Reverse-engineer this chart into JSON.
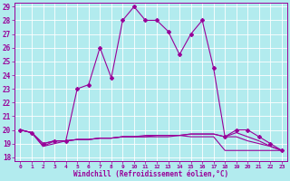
{
  "xlabel": "Windchill (Refroidissement éolien,°C)",
  "background_color": "#b2ebee",
  "grid_color": "#ffffff",
  "line_color": "#990099",
  "xlim": [
    -0.5,
    23.5
  ],
  "ylim": [
    17.7,
    29.3
  ],
  "yticks": [
    18,
    19,
    20,
    21,
    22,
    23,
    24,
    25,
    26,
    27,
    28,
    29
  ],
  "xticks": [
    0,
    1,
    2,
    3,
    4,
    5,
    6,
    7,
    8,
    9,
    10,
    11,
    12,
    13,
    14,
    15,
    16,
    17,
    18,
    19,
    20,
    21,
    22,
    23
  ],
  "series": [
    {
      "x": [
        0,
        1,
        2,
        3,
        4,
        5,
        6,
        7,
        8,
        9,
        10,
        11,
        12,
        13,
        14,
        15,
        16,
        17,
        18,
        19,
        20,
        21,
        22,
        23
      ],
      "y": [
        20.0,
        19.8,
        19.0,
        19.2,
        19.2,
        23.0,
        23.3,
        26.0,
        23.8,
        28.0,
        29.0,
        28.0,
        28.0,
        27.2,
        25.5,
        27.0,
        28.0,
        24.5,
        19.5,
        20.0,
        20.0,
        19.5,
        19.0,
        18.5
      ],
      "marker": true
    },
    {
      "x": [
        0,
        1,
        2,
        3,
        4,
        5,
        6,
        7,
        8,
        9,
        10,
        11,
        12,
        13,
        14,
        15,
        16,
        17,
        18,
        19,
        20,
        21,
        22,
        23
      ],
      "y": [
        20.0,
        19.8,
        19.0,
        19.2,
        19.2,
        19.3,
        19.3,
        19.4,
        19.4,
        19.5,
        19.5,
        19.5,
        19.6,
        19.6,
        19.6,
        19.7,
        19.7,
        19.7,
        19.5,
        19.5,
        19.2,
        19.0,
        18.8,
        18.5
      ],
      "marker": false
    },
    {
      "x": [
        0,
        1,
        2,
        3,
        4,
        5,
        6,
        7,
        8,
        9,
        10,
        11,
        12,
        13,
        14,
        15,
        16,
        17,
        18,
        19,
        20,
        21,
        22,
        23
      ],
      "y": [
        20.0,
        19.8,
        18.8,
        19.2,
        19.2,
        19.3,
        19.3,
        19.4,
        19.4,
        19.5,
        19.5,
        19.6,
        19.6,
        19.6,
        19.6,
        19.7,
        19.7,
        19.7,
        19.5,
        19.8,
        19.5,
        19.2,
        18.8,
        18.5
      ],
      "marker": false
    },
    {
      "x": [
        0,
        1,
        2,
        3,
        4,
        5,
        6,
        7,
        8,
        9,
        10,
        11,
        12,
        13,
        14,
        15,
        16,
        17,
        18,
        19,
        20,
        21,
        22,
        23
      ],
      "y": [
        20.0,
        19.8,
        18.8,
        19.0,
        19.2,
        19.3,
        19.3,
        19.4,
        19.4,
        19.5,
        19.5,
        19.5,
        19.5,
        19.5,
        19.6,
        19.5,
        19.5,
        19.5,
        18.5,
        18.5,
        18.5,
        18.5,
        18.5,
        18.5
      ],
      "marker": false
    }
  ]
}
